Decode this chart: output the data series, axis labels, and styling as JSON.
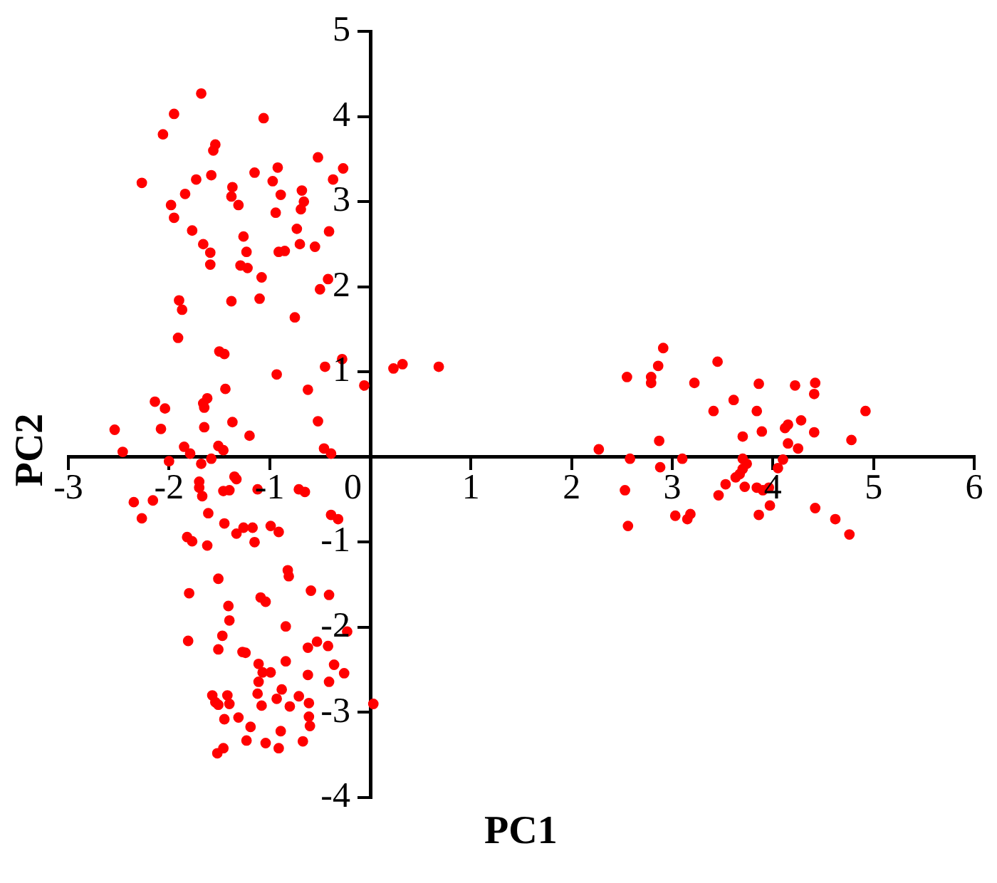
{
  "chart_data": {
    "type": "scatter",
    "xlabel": "PC1",
    "ylabel": "PC2",
    "xlim": [
      -3,
      6
    ],
    "xticks": [
      -3,
      -2,
      -1,
      0,
      1,
      2,
      3,
      4,
      5,
      6
    ],
    "ylim": [
      -4,
      5
    ],
    "yticks": [
      -4,
      -3,
      -2,
      -1,
      1,
      2,
      3,
      4,
      5
    ],
    "grid": false,
    "legend": false,
    "marker": "circle",
    "series": [
      {
        "color": "#ff0000",
        "x": [
          -1.68,
          -1.95,
          -1.06,
          -2.06,
          -1.54,
          -1.56,
          -0.52,
          -2.27,
          -0.27,
          -0.92,
          -1.15,
          -1.58,
          -1.73,
          -0.97,
          -0.37,
          -0.68,
          -1.37,
          -0.89,
          -1.84,
          -1.38,
          -1.98,
          -0.66,
          -1.31,
          -0.69,
          -0.94,
          -1.95,
          -1.77,
          -0.73,
          -0.41,
          -1.26,
          -1.66,
          -0.7,
          -0.55,
          -1.23,
          -0.91,
          -0.85,
          -1.59,
          -1.59,
          -1.29,
          -1.22,
          -1.08,
          -0.42,
          -0.5,
          -1.9,
          -1.38,
          -1.1,
          -1.87,
          -0.75,
          -1.91,
          -1.5,
          -1.45,
          -0.28,
          -0.45,
          -0.93,
          0.23,
          0.32,
          0.68,
          -0.06,
          -0.62,
          -1.44,
          -2.14,
          -2.04,
          -1.62,
          -1.66,
          -1.65,
          -0.52,
          -1.37,
          -1.65,
          -2.54,
          -2.08,
          -1.2,
          -1.85,
          -1.51,
          -1.46,
          -0.46,
          -2.46,
          -1.79,
          -0.39,
          -2.0,
          -1.58,
          -1.68,
          -1.35,
          -1.33,
          -1.7,
          -1.7,
          -1.12,
          -1.46,
          -1.4,
          -0.71,
          -0.65,
          -2.35,
          -2.16,
          -1.67,
          -1.61,
          -2.27,
          -0.39,
          -0.32,
          -1.45,
          -1.26,
          -1.17,
          -0.99,
          -1.33,
          -0.91,
          -1.82,
          -1.77,
          -1.15,
          -1.62,
          -0.82,
          -0.81,
          -1.51,
          -0.59,
          -1.8,
          -0.41,
          -1.09,
          -1.04,
          -1.41,
          -1.4,
          -0.84,
          -1.81,
          -1.47,
          -0.23,
          -0.53,
          -0.62,
          -1.51,
          -1.27,
          -1.24,
          -0.42,
          -1.11,
          -0.84,
          -0.36,
          -1.07,
          -0.99,
          -0.62,
          -0.26,
          -1.11,
          -0.41,
          -1.57,
          -1.42,
          -1.12,
          -0.88,
          -0.71,
          -1.54,
          -1.4,
          -1.08,
          -0.93,
          -0.8,
          -0.61,
          -1.51,
          0.03,
          -1.45,
          -1.31,
          -0.61,
          -1.19,
          -0.6,
          -0.89,
          -1.23,
          -1.04,
          -0.67,
          -0.91,
          -1.46,
          -1.52,
          2.91,
          3.45,
          2.86,
          2.55,
          2.79,
          2.79,
          3.22,
          3.86,
          4.22,
          4.42,
          4.41,
          3.61,
          3.41,
          3.84,
          4.92,
          4.28,
          4.15,
          4.12,
          3.89,
          4.41,
          3.7,
          4.15,
          4.78,
          2.87,
          4.25,
          2.27,
          2.58,
          3.1,
          3.7,
          3.74,
          4.1,
          3.7,
          3.67,
          2.88,
          4.05,
          3.63,
          3.53,
          3.72,
          3.84,
          3.9,
          3.96,
          2.53,
          3.46,
          3.97,
          4.42,
          3.03,
          3.15,
          3.18,
          3.86,
          2.56,
          4.62,
          4.76
        ],
        "values": [
          4.27,
          4.03,
          3.98,
          3.79,
          3.67,
          3.6,
          3.52,
          3.22,
          3.39,
          3.4,
          3.34,
          3.31,
          3.26,
          3.24,
          3.26,
          3.13,
          3.17,
          3.08,
          3.09,
          3.06,
          2.96,
          3.0,
          2.96,
          2.91,
          2.87,
          2.81,
          2.66,
          2.68,
          2.65,
          2.59,
          2.5,
          2.5,
          2.47,
          2.41,
          2.41,
          2.42,
          2.4,
          2.26,
          2.25,
          2.22,
          2.11,
          2.09,
          1.97,
          1.84,
          1.83,
          1.86,
          1.73,
          1.64,
          1.4,
          1.24,
          1.21,
          1.15,
          1.06,
          0.97,
          1.04,
          1.09,
          1.06,
          0.84,
          0.79,
          0.8,
          0.65,
          0.57,
          0.69,
          0.63,
          0.58,
          0.42,
          0.41,
          0.35,
          0.32,
          0.33,
          0.25,
          0.12,
          0.13,
          0.08,
          0.1,
          0.06,
          0.04,
          0.04,
          -0.05,
          -0.02,
          -0.08,
          -0.23,
          -0.26,
          -0.29,
          -0.36,
          -0.38,
          -0.4,
          -0.39,
          -0.38,
          -0.41,
          -0.53,
          -0.51,
          -0.46,
          -0.66,
          -0.72,
          -0.68,
          -0.73,
          -0.78,
          -0.83,
          -0.83,
          -0.81,
          -0.9,
          -0.88,
          -0.94,
          -0.99,
          -1.0,
          -1.04,
          -1.33,
          -1.4,
          -1.43,
          -1.57,
          -1.6,
          -1.62,
          -1.65,
          -1.7,
          -1.75,
          -1.92,
          -1.99,
          -2.16,
          -2.1,
          -2.05,
          -2.17,
          -2.24,
          -2.26,
          -2.29,
          -2.3,
          -2.22,
          -2.43,
          -2.4,
          -2.44,
          -2.53,
          -2.53,
          -2.56,
          -2.54,
          -2.64,
          -2.64,
          -2.8,
          -2.8,
          -2.78,
          -2.73,
          -2.81,
          -2.88,
          -2.9,
          -2.92,
          -2.84,
          -2.93,
          -2.89,
          -2.91,
          -2.9,
          -3.08,
          -3.06,
          -3.05,
          -3.17,
          -3.16,
          -3.22,
          -3.33,
          -3.36,
          -3.34,
          -3.42,
          -3.42,
          -3.48,
          1.28,
          1.12,
          1.07,
          0.94,
          0.94,
          0.87,
          0.87,
          0.86,
          0.84,
          0.87,
          0.74,
          0.67,
          0.54,
          0.54,
          0.54,
          0.43,
          0.38,
          0.34,
          0.3,
          0.29,
          0.24,
          0.16,
          0.2,
          0.19,
          0.1,
          0.09,
          -0.02,
          -0.02,
          -0.02,
          -0.08,
          -0.03,
          -0.14,
          -0.2,
          -0.12,
          -0.13,
          -0.24,
          -0.32,
          -0.35,
          -0.36,
          -0.39,
          -0.36,
          -0.39,
          -0.45,
          -0.57,
          -0.6,
          -0.69,
          -0.73,
          -0.67,
          -0.68,
          -0.81,
          -0.73,
          -0.91
        ]
      }
    ]
  }
}
